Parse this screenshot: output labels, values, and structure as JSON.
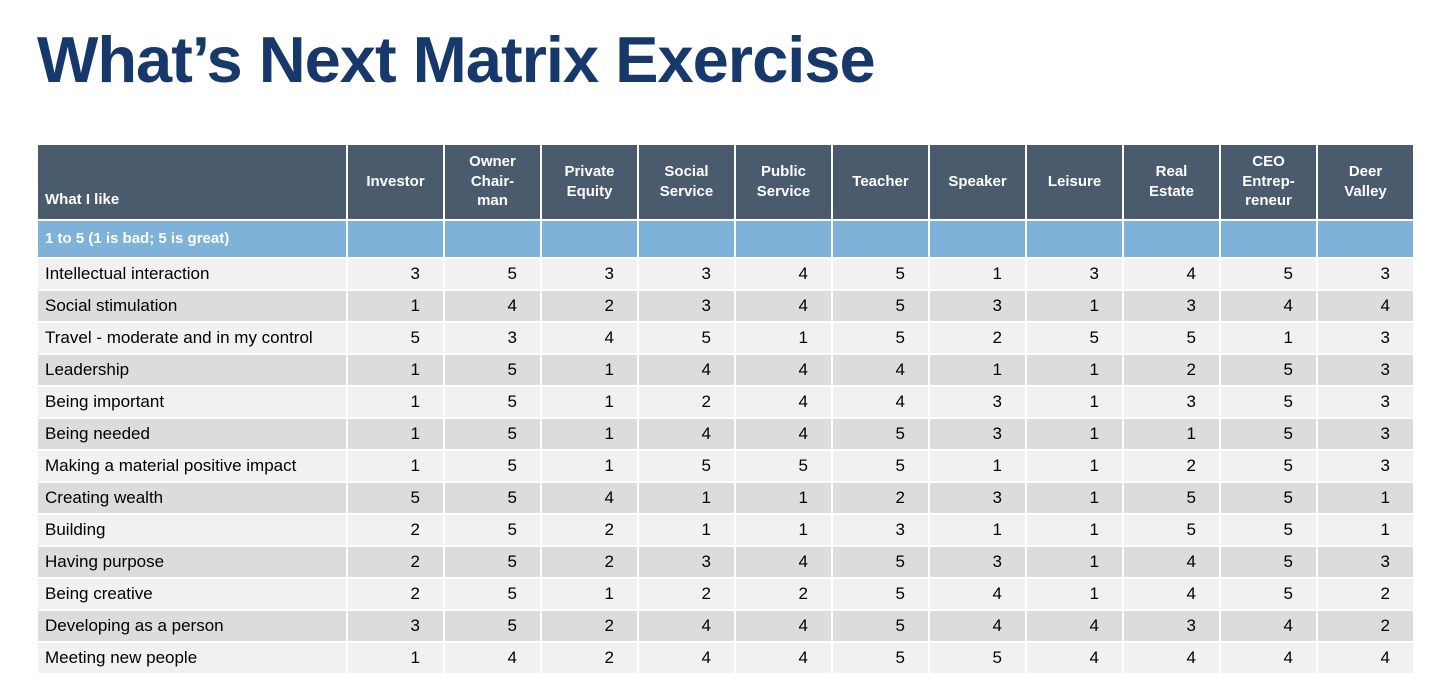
{
  "page": {
    "title": "What’s Next Matrix Exercise"
  },
  "colors": {
    "title": "#17386B",
    "header_bg": "#4A5B6E",
    "scale_bg": "#7FB2D9",
    "row_light": "#F1F1F1",
    "row_dark": "#DCDCDC"
  },
  "table": {
    "corner_header": "What I like",
    "scale_note": "1 to 5 (1 is bad; 5 is great)",
    "columns": [
      "Investor",
      "Owner\nChair-\nman",
      "Private\nEquity",
      "Social\nService",
      "Public\nService",
      "Teacher",
      "Speaker",
      "Leisure",
      "Real\nEstate",
      "CEO\nEntrep-\nreneur",
      "Deer\nValley"
    ],
    "rows": [
      {
        "label": "Intellectual interaction",
        "values": [
          3,
          5,
          3,
          3,
          4,
          5,
          1,
          3,
          4,
          5,
          3
        ]
      },
      {
        "label": "Social stimulation",
        "values": [
          1,
          4,
          2,
          3,
          4,
          5,
          3,
          1,
          3,
          4,
          4
        ]
      },
      {
        "label": "Travel - moderate and in my control",
        "values": [
          5,
          3,
          4,
          5,
          1,
          5,
          2,
          5,
          5,
          1,
          3
        ]
      },
      {
        "label": "Leadership",
        "values": [
          1,
          5,
          1,
          4,
          4,
          4,
          1,
          1,
          2,
          5,
          3
        ]
      },
      {
        "label": "Being important",
        "values": [
          1,
          5,
          1,
          2,
          4,
          4,
          3,
          1,
          3,
          5,
          3
        ]
      },
      {
        "label": "Being needed",
        "values": [
          1,
          5,
          1,
          4,
          4,
          5,
          3,
          1,
          1,
          5,
          3
        ]
      },
      {
        "label": "Making a material positive impact",
        "values": [
          1,
          5,
          1,
          5,
          5,
          5,
          1,
          1,
          2,
          5,
          3
        ]
      },
      {
        "label": "Creating wealth",
        "values": [
          5,
          5,
          4,
          1,
          1,
          2,
          3,
          1,
          5,
          5,
          1
        ]
      },
      {
        "label": "Building",
        "values": [
          2,
          5,
          2,
          1,
          1,
          3,
          1,
          1,
          5,
          5,
          1
        ]
      },
      {
        "label": "Having purpose",
        "values": [
          2,
          5,
          2,
          3,
          4,
          5,
          3,
          1,
          4,
          5,
          3
        ]
      },
      {
        "label": "Being creative",
        "values": [
          2,
          5,
          1,
          2,
          2,
          5,
          4,
          1,
          4,
          5,
          2
        ]
      },
      {
        "label": "Developing as a person",
        "values": [
          3,
          5,
          2,
          4,
          4,
          5,
          4,
          4,
          3,
          4,
          2
        ]
      },
      {
        "label": "Meeting new people",
        "values": [
          1,
          4,
          2,
          4,
          4,
          5,
          5,
          4,
          4,
          4,
          4
        ]
      }
    ]
  }
}
